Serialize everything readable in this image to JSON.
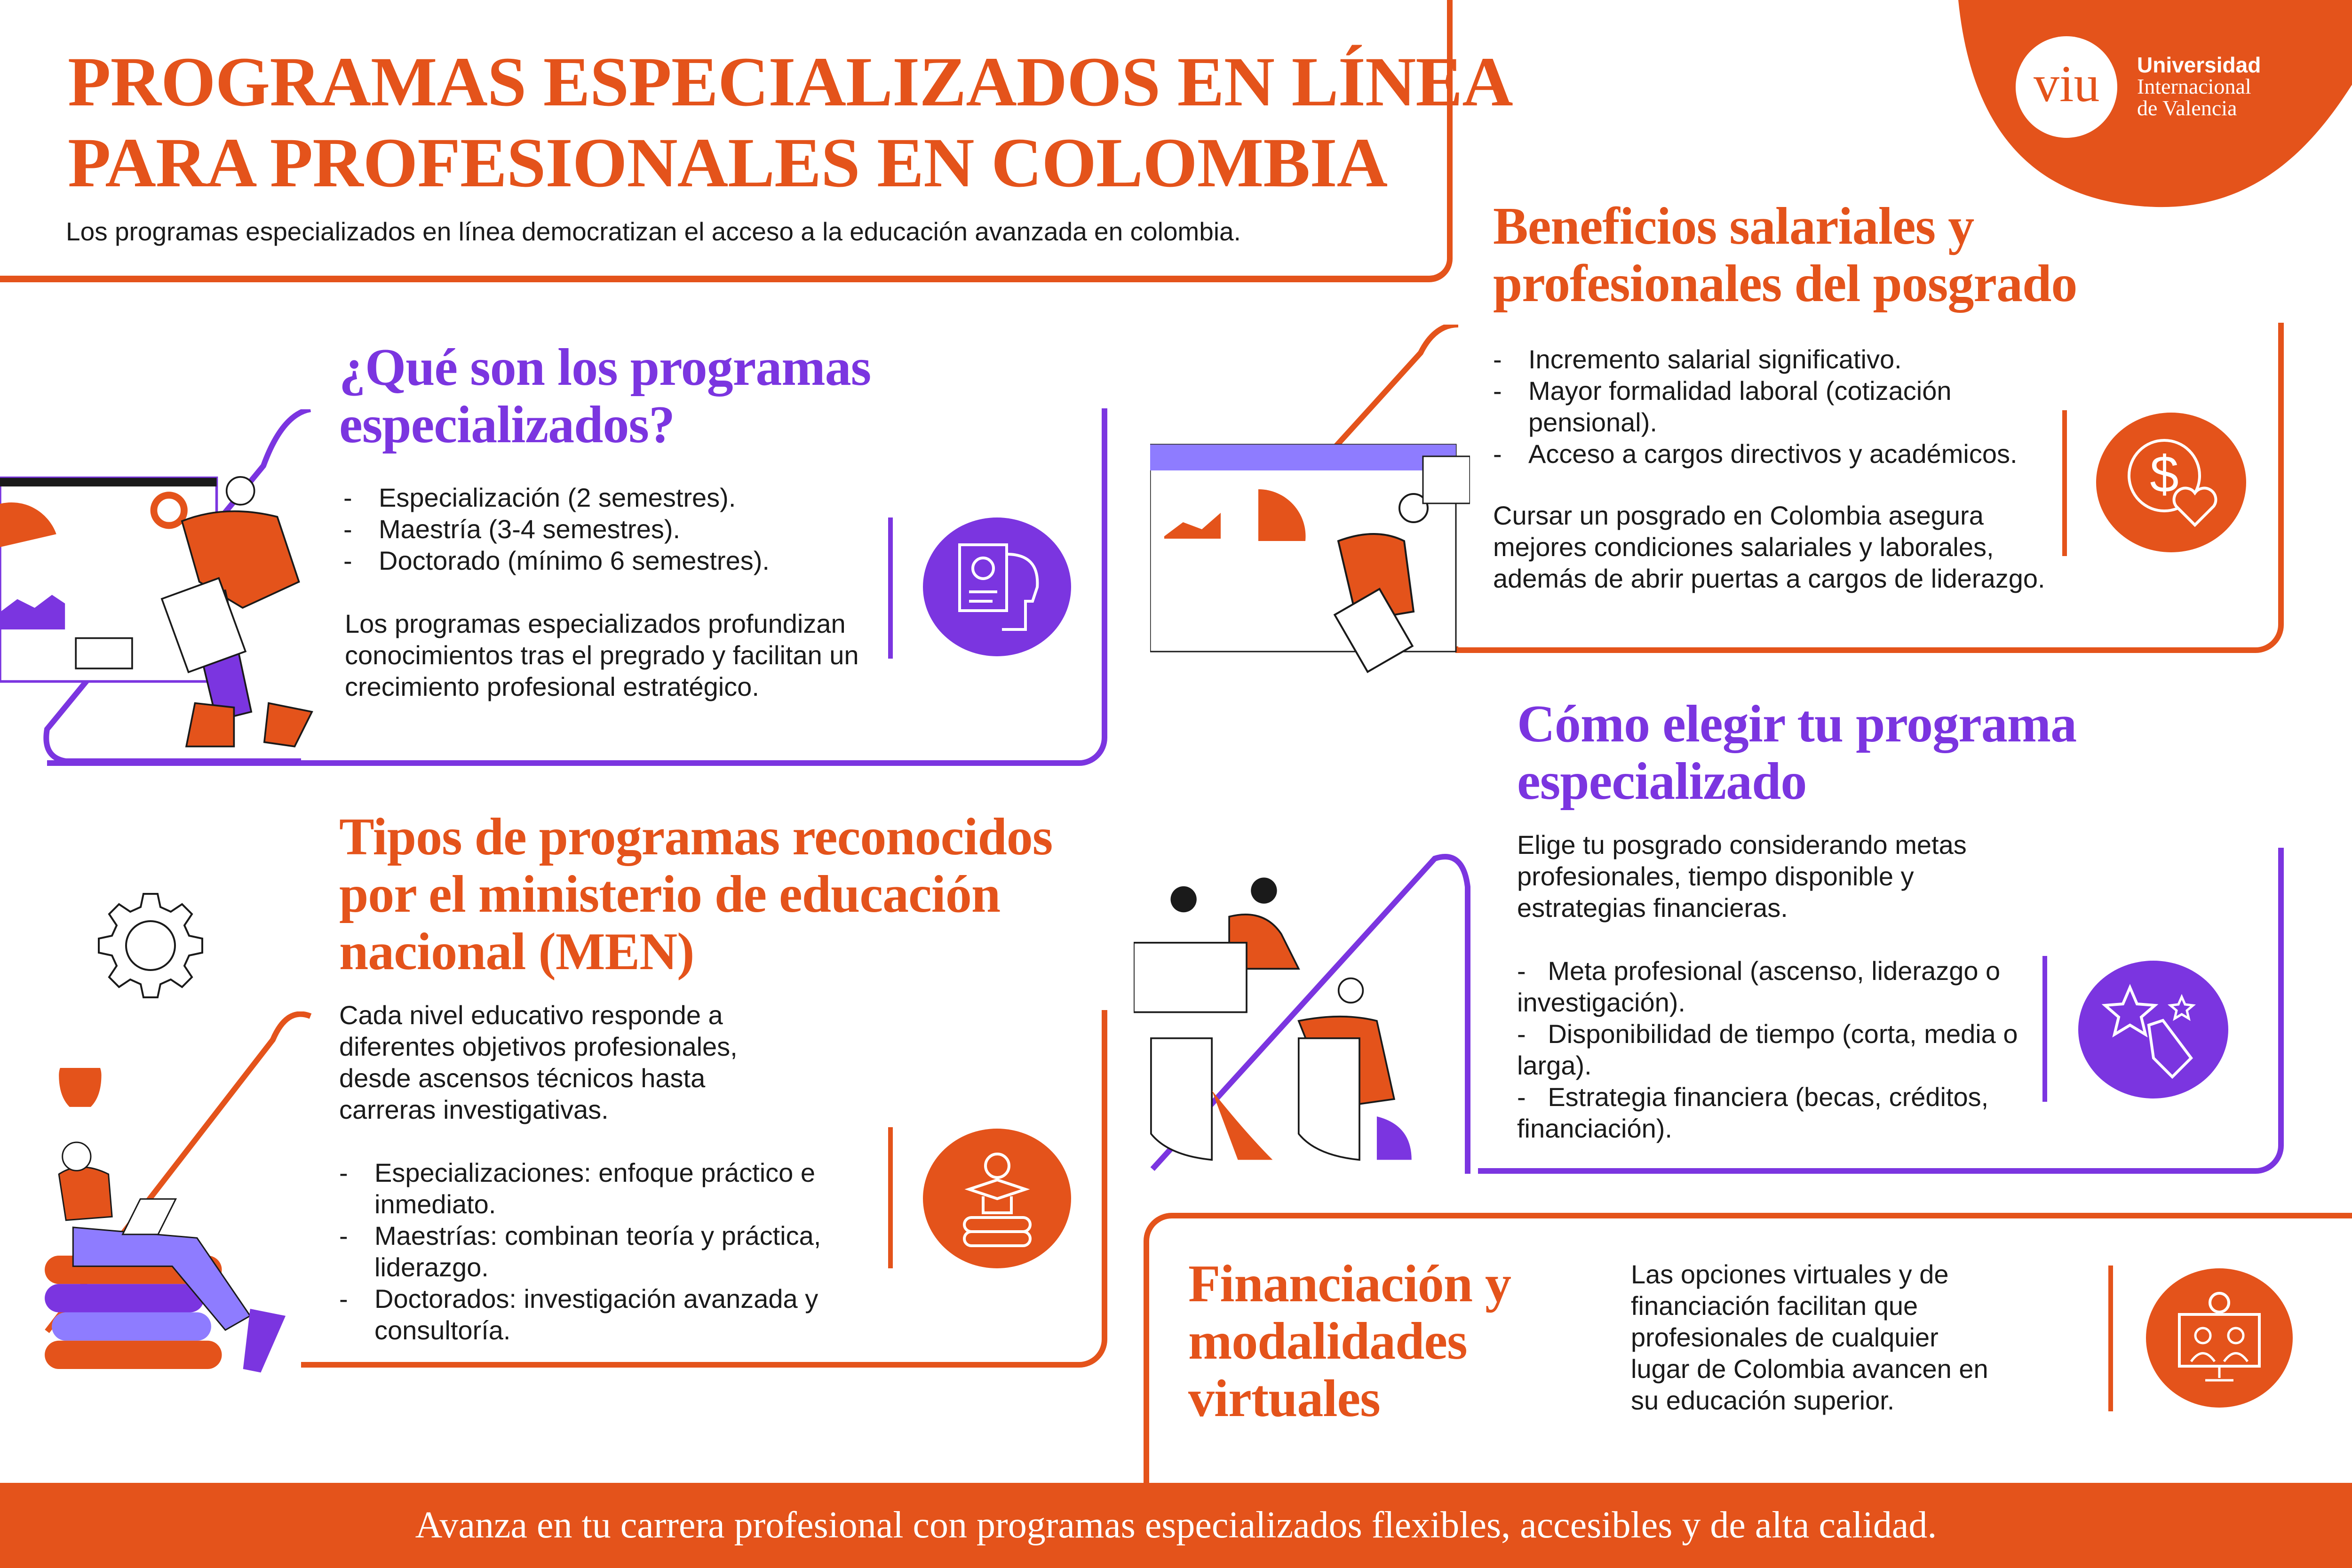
{
  "colors": {
    "orange": "#E4531B",
    "purple": "#7B35E0",
    "light_purple": "#8E7CFF"
  },
  "header": {
    "title_line1": "PROGRAMAS ESPECIALIZADOS EN LÍNEA",
    "title_line2": "PARA PROFESIONALES EN COLOMBIA",
    "subtitle": "Los programas especializados en línea democratizan el acceso a la educación avanzada en colombia."
  },
  "logo": {
    "mark": "viu",
    "line1": "Universidad",
    "line2": "Internacional",
    "line3": "de Valencia"
  },
  "que_son": {
    "title": "¿Qué son los programas especializados?",
    "items": [
      "Especialización (2 semestres).",
      "Maestría (3-4 semestres).",
      "Doctorado (mínimo 6 semestres)."
    ],
    "paragraph": "Los programas especializados profundizan conocimientos tras el pregrado y facilitan un crecimiento profesional estratégico.",
    "icon": "certificate-head-icon"
  },
  "beneficios": {
    "title": "Beneficios salariales y profesionales del posgrado",
    "items": [
      "Incremento salarial significativo.",
      "Mayor formalidad laboral (cotización pensional).",
      "Acceso a cargos directivos y académicos."
    ],
    "paragraph": "Cursar un posgrado en Colombia asegura mejores condiciones salariales y laborales, además de abrir puertas a cargos de liderazgo.",
    "icon": "dollar-heart-icon"
  },
  "tipos": {
    "title": "Tipos de programas reconocidos por el ministerio de educación nacional (MEN)",
    "paragraph": "Cada nivel educativo responde a diferentes objetivos profesionales, desde ascensos técnicos hasta carreras investigativas.",
    "items": [
      "Especializaciones: enfoque práctico e inmediato.",
      "Maestrías: combinan teoría y práctica, liderazgo.",
      "Doctorados: investigación avanzada y consultoría."
    ],
    "icon": "graduation-books-icon"
  },
  "como_elegir": {
    "title": "Cómo elegir tu programa especializado",
    "paragraph": "Elige tu posgrado considerando metas profesionales, tiempo disponible y estrategias financieras.",
    "items": [
      "Meta profesional (ascenso, liderazgo o investigación).",
      "Disponibilidad de tiempo (corta, media o larga).",
      "Estrategia financiera (becas, créditos, financiación)."
    ],
    "icon": "stars-hand-icon"
  },
  "financiacion": {
    "title": "Financiación y modalidades virtuales",
    "paragraph": "Las opciones virtuales y de financiación facilitan que profesionales de cualquier lugar de Colombia avancen en su educación superior.",
    "icon": "online-class-monitor-icon"
  },
  "footer": {
    "text": "Avanza en tu carrera profesional con programas especializados flexibles, accesibles y de alta calidad."
  }
}
